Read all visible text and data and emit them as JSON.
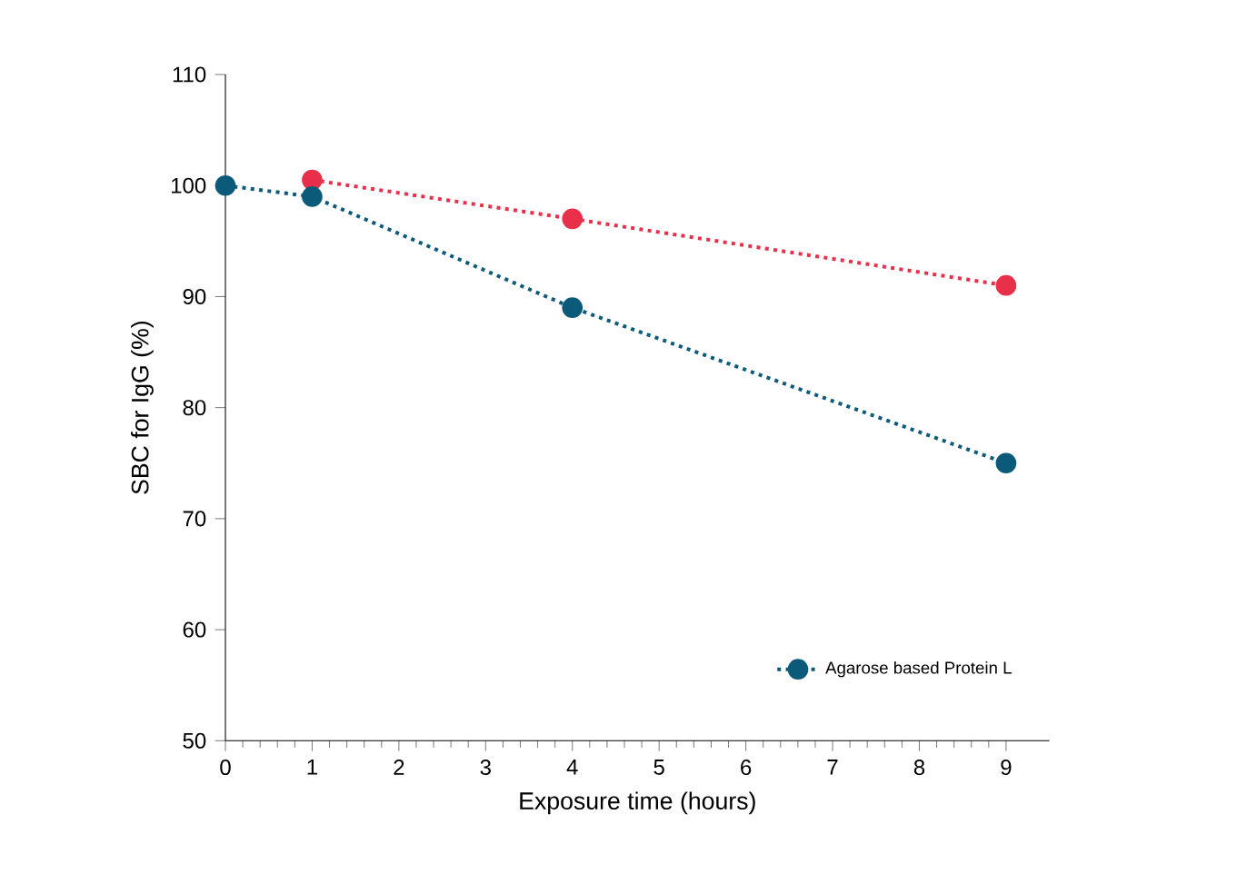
{
  "chart_data": {
    "type": "line",
    "xlabel": "Exposure time (hours)",
    "ylabel": "SBC for IgG (%)",
    "xlim": [
      0,
      9.5
    ],
    "xticks": [
      0,
      1,
      2,
      3,
      4,
      5,
      6,
      7,
      8,
      9
    ],
    "ylim": [
      50,
      110
    ],
    "yticks": [
      50,
      60,
      70,
      80,
      90,
      100,
      110
    ],
    "marker": "circle",
    "line_style": "dotted",
    "legend": "bottom right",
    "series": [
      {
        "color": "#e8304a",
        "x": [
          1,
          4,
          9
        ],
        "values": [
          100.5,
          97,
          91
        ]
      },
      {
        "name": "Agarose based Protein L",
        "color": "#0b5a7a",
        "x": [
          0,
          1,
          4,
          9
        ],
        "values": [
          100,
          99,
          89,
          75
        ]
      }
    ]
  }
}
